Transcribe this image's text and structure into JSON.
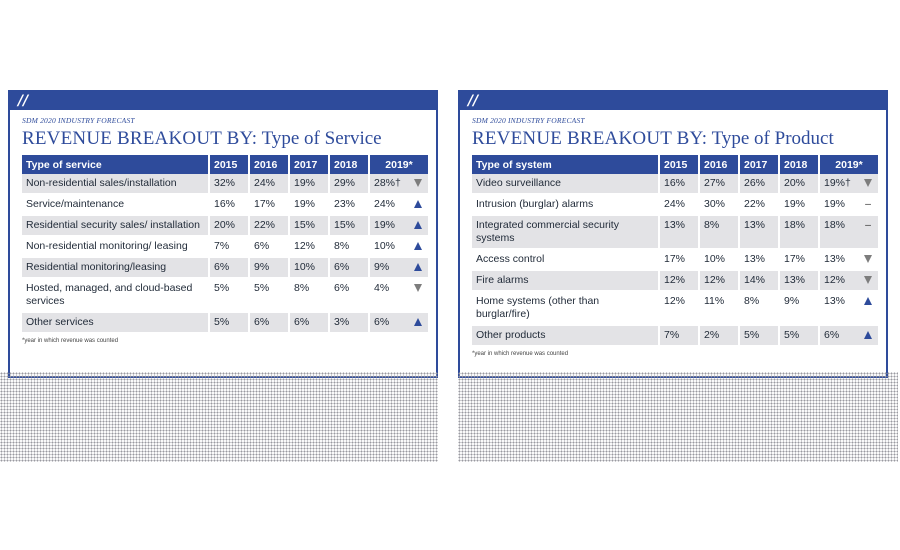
{
  "left": {
    "slashes": "//",
    "kicker": "SDM 2020 INDUSTRY FORECAST",
    "headline_caps": "REVENUE BREAKOUT BY:",
    "headline_rest": " Type of Service",
    "headers": [
      "Type of service",
      "2015",
      "2016",
      "2017",
      "2018",
      "2019*"
    ],
    "rows": [
      {
        "label": "Non-residential sales/installation",
        "v": [
          "32%",
          "24%",
          "19%",
          "29%",
          "28%†"
        ],
        "trend": "down"
      },
      {
        "label": "Service/maintenance",
        "v": [
          "16%",
          "17%",
          "19%",
          "23%",
          "24%"
        ],
        "trend": "up"
      },
      {
        "label": "Residential security sales/ installation",
        "v": [
          "20%",
          "22%",
          "15%",
          "15%",
          "19%"
        ],
        "trend": "up"
      },
      {
        "label": "Non-residential monitoring/ leasing",
        "v": [
          "7%",
          "6%",
          "12%",
          "8%",
          "10%"
        ],
        "trend": "up"
      },
      {
        "label": "Residential monitoring/leasing",
        "v": [
          "6%",
          "9%",
          "10%",
          "6%",
          "9%"
        ],
        "trend": "up"
      },
      {
        "label": "Hosted, managed, and cloud-based services",
        "v": [
          "5%",
          "5%",
          "8%",
          "6%",
          "4%"
        ],
        "trend": "down"
      },
      {
        "label": "Other services",
        "v": [
          "5%",
          "6%",
          "6%",
          "3%",
          "6%"
        ],
        "trend": "up"
      }
    ],
    "footnote": "*year in which revenue was counted"
  },
  "right": {
    "slashes": "//",
    "kicker": "SDM 2020 INDUSTRY FORECAST",
    "headline_caps": "REVENUE BREAKOUT BY:",
    "headline_rest": " Type of Product",
    "headers": [
      "Type of system",
      "2015",
      "2016",
      "2017",
      "2018",
      "2019*"
    ],
    "rows": [
      {
        "label": "Video surveillance",
        "v": [
          "16%",
          "27%",
          "26%",
          "20%",
          "19%†"
        ],
        "trend": "down"
      },
      {
        "label": "Intrusion (burglar) alarms",
        "v": [
          "24%",
          "30%",
          "22%",
          "19%",
          "19%"
        ],
        "trend": "flat"
      },
      {
        "label": "Integrated commercial security systems",
        "v": [
          "13%",
          "8%",
          "13%",
          "18%",
          "18%"
        ],
        "trend": "flat"
      },
      {
        "label": "Access control",
        "v": [
          "17%",
          "10%",
          "13%",
          "17%",
          "13%"
        ],
        "trend": "down"
      },
      {
        "label": "Fire alarms",
        "v": [
          "12%",
          "12%",
          "14%",
          "13%",
          "12%"
        ],
        "trend": "down"
      },
      {
        "label": "Home systems (other than burglar/fire)",
        "v": [
          "12%",
          "11%",
          "8%",
          "9%",
          "13%"
        ],
        "trend": "up"
      },
      {
        "label": "Other products",
        "v": [
          "7%",
          "2%",
          "5%",
          "5%",
          "6%"
        ],
        "trend": "up"
      }
    ],
    "footnote": "*year in which revenue was counted"
  },
  "colors": {
    "brand_blue": "#2e4b9b",
    "row_shade": "#e3e3e6",
    "down_gray": "#7d7d7d"
  }
}
